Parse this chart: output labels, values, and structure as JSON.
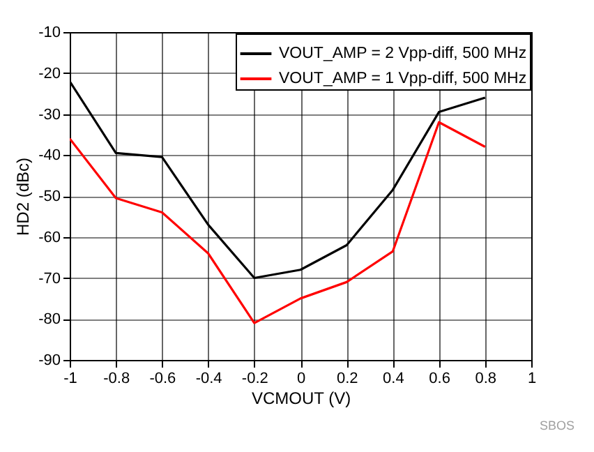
{
  "chart_data": {
    "type": "line",
    "xlabel": "VCMOUT (V)",
    "ylabel": "HD2 (dBc)",
    "x": [
      -1,
      -0.8,
      -0.6,
      -0.4,
      -0.2,
      0,
      0.2,
      0.4,
      0.6,
      0.8
    ],
    "series": [
      {
        "name": "VOUT_AMP = 2 Vpp-diff, 500 MHz",
        "color": "#000000",
        "values": [
          -22,
          -39.5,
          -40.5,
          -57,
          -70,
          -68,
          -62,
          -48.5,
          -29.5,
          -26
        ]
      },
      {
        "name": "VOUT_AMP = 1 Vpp-diff, 500 MHz",
        "color": "#ff0000",
        "values": [
          -36,
          -50.5,
          -54,
          -64,
          -81,
          -75,
          -71,
          -63.5,
          -32,
          -38
        ]
      }
    ],
    "xlim": [
      -1,
      1
    ],
    "xticks": [
      -1,
      -0.8,
      -0.6,
      -0.4,
      -0.2,
      0,
      0.2,
      0.4,
      0.6,
      0.8,
      1
    ],
    "ylim": [
      -90,
      -10
    ],
    "yticks": [
      -90,
      -80,
      -70,
      -60,
      -50,
      -40,
      -30,
      -20,
      -10
    ],
    "grid": true,
    "legend": "top right",
    "annotations": [
      "SBOS"
    ]
  }
}
